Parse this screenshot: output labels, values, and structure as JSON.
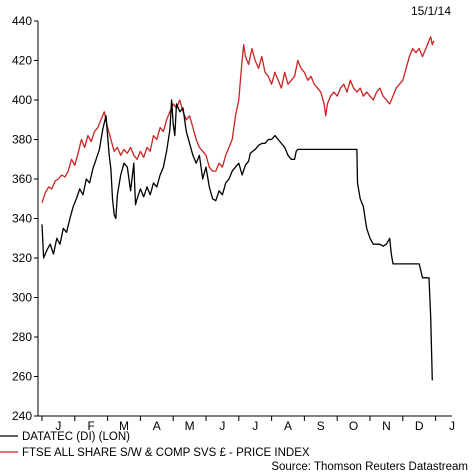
{
  "date_label": "15/1/14",
  "source": "Source: Thomson Reuters Datastream",
  "colors": {
    "datatec": "#000000",
    "ftse": "#cc2222"
  },
  "chart_data": {
    "type": "line",
    "title": "",
    "xlabel": "",
    "ylabel": "",
    "ylim": [
      240,
      440
    ],
    "y_ticks": [
      240,
      260,
      280,
      300,
      320,
      340,
      360,
      380,
      400,
      420,
      440
    ],
    "x_ticks": [
      "J",
      "F",
      "M",
      "A",
      "M",
      "J",
      "J",
      "A",
      "S",
      "O",
      "N",
      "D",
      "J"
    ],
    "x_unit": "month index from start of January 2013 (0 = Jan 1 2013, 12 = Jan 1 2014)",
    "xlim": [
      0,
      12.5
    ],
    "grid": false,
    "legend": "bottom-left",
    "series": [
      {
        "name": "DATATEC (DI) (LON)",
        "color": "#000000",
        "points": [
          [
            0.0,
            337
          ],
          [
            0.05,
            320
          ],
          [
            0.15,
            324
          ],
          [
            0.25,
            327
          ],
          [
            0.35,
            322
          ],
          [
            0.45,
            330
          ],
          [
            0.55,
            327
          ],
          [
            0.65,
            335
          ],
          [
            0.75,
            333
          ],
          [
            0.85,
            340
          ],
          [
            0.95,
            346
          ],
          [
            1.05,
            350
          ],
          [
            1.15,
            355
          ],
          [
            1.25,
            352
          ],
          [
            1.35,
            360
          ],
          [
            1.45,
            358
          ],
          [
            1.55,
            365
          ],
          [
            1.65,
            370
          ],
          [
            1.75,
            375
          ],
          [
            1.85,
            385
          ],
          [
            1.95,
            392
          ],
          [
            2.0,
            382
          ],
          [
            2.05,
            372
          ],
          [
            2.1,
            365
          ],
          [
            2.15,
            350
          ],
          [
            2.2,
            342
          ],
          [
            2.25,
            340
          ],
          [
            2.3,
            352
          ],
          [
            2.4,
            362
          ],
          [
            2.5,
            368
          ],
          [
            2.6,
            366
          ],
          [
            2.7,
            354
          ],
          [
            2.8,
            368
          ],
          [
            2.85,
            347
          ],
          [
            2.9,
            350
          ],
          [
            3.0,
            355
          ],
          [
            3.1,
            351
          ],
          [
            3.2,
            356
          ],
          [
            3.3,
            352
          ],
          [
            3.4,
            358
          ],
          [
            3.5,
            356
          ],
          [
            3.6,
            362
          ],
          [
            3.7,
            366
          ],
          [
            3.8,
            374
          ],
          [
            3.9,
            385
          ],
          [
            3.95,
            400
          ],
          [
            4.0,
            388
          ],
          [
            4.05,
            382
          ],
          [
            4.1,
            398
          ],
          [
            4.2,
            394
          ],
          [
            4.3,
            396
          ],
          [
            4.4,
            384
          ],
          [
            4.5,
            378
          ],
          [
            4.6,
            372
          ],
          [
            4.7,
            368
          ],
          [
            4.8,
            372
          ],
          [
            4.9,
            360
          ],
          [
            5.0,
            366
          ],
          [
            5.1,
            356
          ],
          [
            5.2,
            350
          ],
          [
            5.3,
            349
          ],
          [
            5.4,
            354
          ],
          [
            5.5,
            352
          ],
          [
            5.6,
            358
          ],
          [
            5.7,
            360
          ],
          [
            5.8,
            364
          ],
          [
            5.9,
            366
          ],
          [
            6.0,
            368
          ],
          [
            6.1,
            362
          ],
          [
            6.2,
            367
          ],
          [
            6.3,
            369
          ],
          [
            6.35,
            373
          ],
          [
            6.5,
            375
          ],
          [
            6.6,
            377
          ],
          [
            6.7,
            378
          ],
          [
            6.8,
            378
          ],
          [
            6.9,
            380
          ],
          [
            7.0,
            380
          ],
          [
            7.1,
            382
          ],
          [
            7.2,
            380
          ],
          [
            7.3,
            378
          ],
          [
            7.4,
            376
          ],
          [
            7.5,
            372
          ],
          [
            7.6,
            370
          ],
          [
            7.7,
            370
          ],
          [
            7.75,
            374
          ],
          [
            7.8,
            375
          ],
          [
            8.0,
            375
          ],
          [
            8.5,
            375
          ],
          [
            9.0,
            375
          ],
          [
            9.5,
            375
          ],
          [
            9.6,
            375
          ],
          [
            9.62,
            358
          ],
          [
            9.7,
            350
          ],
          [
            9.8,
            346
          ],
          [
            9.85,
            340
          ],
          [
            9.9,
            335
          ],
          [
            10.0,
            330
          ],
          [
            10.1,
            327
          ],
          [
            10.2,
            327
          ],
          [
            10.3,
            327
          ],
          [
            10.4,
            326
          ],
          [
            10.5,
            327
          ],
          [
            10.6,
            330
          ],
          [
            10.65,
            322
          ],
          [
            10.7,
            317
          ],
          [
            10.8,
            317
          ],
          [
            11.0,
            317
          ],
          [
            11.2,
            317
          ],
          [
            11.4,
            317
          ],
          [
            11.5,
            317
          ],
          [
            11.6,
            310
          ],
          [
            11.8,
            310
          ],
          [
            11.85,
            290
          ],
          [
            11.9,
            258
          ]
        ]
      },
      {
        "name": "FTSE ALL SHARE S/W & COMP SVS £ - PRICE INDEX",
        "color": "#cc2222",
        "points": [
          [
            0.0,
            348
          ],
          [
            0.1,
            353
          ],
          [
            0.2,
            356
          ],
          [
            0.3,
            355
          ],
          [
            0.4,
            359
          ],
          [
            0.5,
            360
          ],
          [
            0.6,
            362
          ],
          [
            0.7,
            361
          ],
          [
            0.8,
            364
          ],
          [
            0.9,
            370
          ],
          [
            1.0,
            367
          ],
          [
            1.1,
            373
          ],
          [
            1.2,
            380
          ],
          [
            1.3,
            376
          ],
          [
            1.4,
            382
          ],
          [
            1.5,
            379
          ],
          [
            1.6,
            384
          ],
          [
            1.7,
            386
          ],
          [
            1.8,
            390
          ],
          [
            1.9,
            394
          ],
          [
            2.0,
            386
          ],
          [
            2.1,
            380
          ],
          [
            2.2,
            374
          ],
          [
            2.3,
            376
          ],
          [
            2.4,
            372
          ],
          [
            2.5,
            375
          ],
          [
            2.6,
            373
          ],
          [
            2.7,
            376
          ],
          [
            2.8,
            372
          ],
          [
            2.9,
            370
          ],
          [
            3.0,
            374
          ],
          [
            3.1,
            371
          ],
          [
            3.2,
            376
          ],
          [
            3.3,
            374
          ],
          [
            3.4,
            382
          ],
          [
            3.5,
            380
          ],
          [
            3.6,
            386
          ],
          [
            3.7,
            384
          ],
          [
            3.8,
            390
          ],
          [
            3.9,
            394
          ],
          [
            4.0,
            398
          ],
          [
            4.1,
            396
          ],
          [
            4.2,
            400
          ],
          [
            4.3,
            394
          ],
          [
            4.4,
            390
          ],
          [
            4.5,
            392
          ],
          [
            4.6,
            386
          ],
          [
            4.7,
            380
          ],
          [
            4.8,
            376
          ],
          [
            4.9,
            374
          ],
          [
            5.0,
            372
          ],
          [
            5.1,
            366
          ],
          [
            5.2,
            364
          ],
          [
            5.3,
            364
          ],
          [
            5.4,
            368
          ],
          [
            5.5,
            366
          ],
          [
            5.6,
            372
          ],
          [
            5.7,
            376
          ],
          [
            5.8,
            380
          ],
          [
            5.9,
            392
          ],
          [
            6.0,
            400
          ],
          [
            6.05,
            410
          ],
          [
            6.1,
            420
          ],
          [
            6.15,
            428
          ],
          [
            6.2,
            422
          ],
          [
            6.3,
            418
          ],
          [
            6.4,
            426
          ],
          [
            6.5,
            420
          ],
          [
            6.6,
            416
          ],
          [
            6.7,
            422
          ],
          [
            6.8,
            414
          ],
          [
            6.9,
            412
          ],
          [
            7.0,
            408
          ],
          [
            7.1,
            414
          ],
          [
            7.2,
            410
          ],
          [
            7.3,
            406
          ],
          [
            7.4,
            414
          ],
          [
            7.5,
            408
          ],
          [
            7.6,
            410
          ],
          [
            7.7,
            412
          ],
          [
            7.8,
            420
          ],
          [
            7.9,
            416
          ],
          [
            8.0,
            414
          ],
          [
            8.1,
            410
          ],
          [
            8.2,
            412
          ],
          [
            8.3,
            408
          ],
          [
            8.4,
            406
          ],
          [
            8.5,
            404
          ],
          [
            8.6,
            398
          ],
          [
            8.65,
            392
          ],
          [
            8.7,
            398
          ],
          [
            8.8,
            402
          ],
          [
            8.9,
            404
          ],
          [
            9.0,
            402
          ],
          [
            9.1,
            406
          ],
          [
            9.2,
            408
          ],
          [
            9.3,
            404
          ],
          [
            9.4,
            410
          ],
          [
            9.5,
            406
          ],
          [
            9.6,
            404
          ],
          [
            9.7,
            406
          ],
          [
            9.8,
            402
          ],
          [
            9.9,
            404
          ],
          [
            10.0,
            402
          ],
          [
            10.1,
            400
          ],
          [
            10.2,
            404
          ],
          [
            10.3,
            406
          ],
          [
            10.4,
            402
          ],
          [
            10.5,
            400
          ],
          [
            10.6,
            398
          ],
          [
            10.7,
            402
          ],
          [
            10.8,
            406
          ],
          [
            10.9,
            408
          ],
          [
            11.0,
            410
          ],
          [
            11.1,
            416
          ],
          [
            11.2,
            422
          ],
          [
            11.3,
            426
          ],
          [
            11.4,
            424
          ],
          [
            11.5,
            426
          ],
          [
            11.6,
            422
          ],
          [
            11.7,
            426
          ],
          [
            11.8,
            430
          ],
          [
            11.85,
            432
          ],
          [
            11.9,
            428
          ],
          [
            11.95,
            430
          ]
        ]
      }
    ]
  }
}
